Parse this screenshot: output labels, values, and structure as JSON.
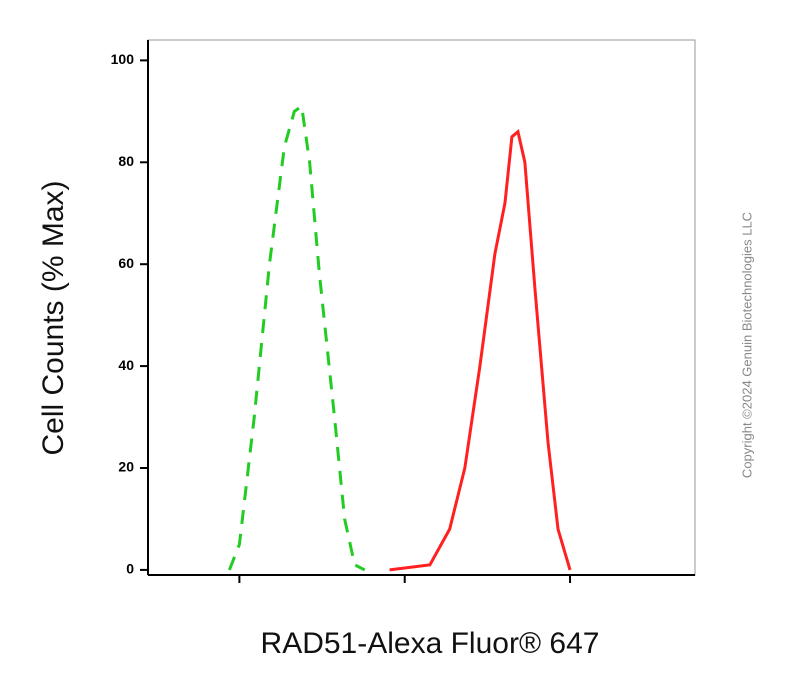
{
  "chart_data": {
    "type": "line",
    "x_label": "RAD51-Alexa Fluor® 647",
    "y_label": "Cell Counts (% Max)",
    "watermark": "Copyright ©2024 Genuin Biotechnologies LLC",
    "x_scale": "log",
    "xlim": [
      2.8,
      5700
    ],
    "xticks": [
      10,
      100,
      1000
    ],
    "ylim": [
      -1,
      104
    ],
    "yticks": [
      0,
      20,
      40,
      60,
      80,
      100
    ],
    "series": [
      {
        "color": "#22cc22",
        "dashed": true,
        "x": [
          8.7,
          10,
          12.3,
          15.2,
          18.7,
          21.5,
          23.8,
          26.6,
          30.5,
          37.6,
          43.3,
          49.8,
          57.3
        ],
        "values": [
          0,
          5,
          30,
          60,
          83,
          90,
          91,
          80,
          58,
          30,
          10,
          1,
          0
        ]
      },
      {
        "color": "#ff2020",
        "dashed": false,
        "x": [
          81,
          142,
          187,
          231,
          285,
          351,
          404,
          445,
          484,
          533,
          614,
          736,
          846,
          1000
        ],
        "values": [
          0,
          1,
          8,
          20,
          40,
          62,
          72,
          85,
          86,
          80,
          55,
          25,
          8,
          0
        ]
      }
    ]
  }
}
